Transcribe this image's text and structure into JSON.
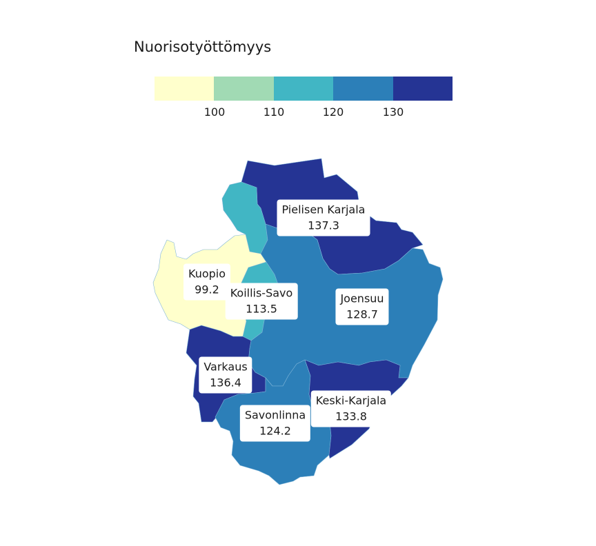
{
  "legend": {
    "title": "Nuorisotyöttömyys",
    "colors": [
      "#ffffcc",
      "#a1dab4",
      "#41b6c4",
      "#2c7fb8",
      "#253494"
    ],
    "ticks": [
      "100",
      "110",
      "120",
      "130"
    ]
  },
  "regions": [
    {
      "id": "pielisen-karjala",
      "name": "Pielisen Karjala",
      "value": "137.3",
      "color": "#253494"
    },
    {
      "id": "kuopio",
      "name": "Kuopio",
      "value": "99.2",
      "color": "#ffffcc"
    },
    {
      "id": "koillis-savo",
      "name": "Koillis-Savo",
      "value": "113.5",
      "color": "#41b6c4"
    },
    {
      "id": "joensuu",
      "name": "Joensuu",
      "value": "128.7",
      "color": "#2c7fb8"
    },
    {
      "id": "varkaus",
      "name": "Varkaus",
      "value": "136.4",
      "color": "#253494"
    },
    {
      "id": "savonlinna",
      "name": "Savonlinna",
      "value": "124.2",
      "color": "#2c7fb8"
    },
    {
      "id": "keski-karjala",
      "name": "Keski-Karjala",
      "value": "133.8",
      "color": "#253494"
    }
  ]
}
